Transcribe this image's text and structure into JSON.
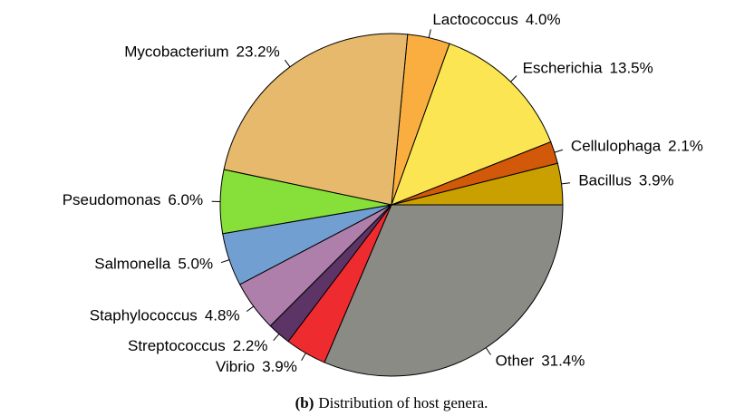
{
  "chart_data": {
    "type": "pie",
    "categories": [
      "Bacillus",
      "Cellulophaga",
      "Escherichia",
      "Lactococcus",
      "Mycobacterium",
      "Pseudomonas",
      "Salmonella",
      "Staphylococcus",
      "Streptococcus",
      "Vibrio",
      "Other"
    ],
    "values": [
      3.9,
      2.1,
      13.5,
      4.0,
      23.2,
      6.0,
      5.0,
      4.8,
      2.2,
      3.9,
      31.4
    ],
    "value_labels": [
      "3.9%",
      "2.1%",
      "13.5%",
      "4.0%",
      "23.2%",
      "6.0%",
      "5.0%",
      "4.8%",
      "2.2%",
      "3.9%",
      "31.4%"
    ],
    "colors": [
      "#c9a000",
      "#d2580a",
      "#fbe552",
      "#f9ae3f",
      "#e6b96c",
      "#87e03a",
      "#729fd2",
      "#ae7faa",
      "#5d3466",
      "#ee2b2e",
      "#8a8b85"
    ],
    "start_angle": 0,
    "direction": "counterclockwise"
  },
  "caption_label": "(b)",
  "caption": "Distribution of host genera."
}
